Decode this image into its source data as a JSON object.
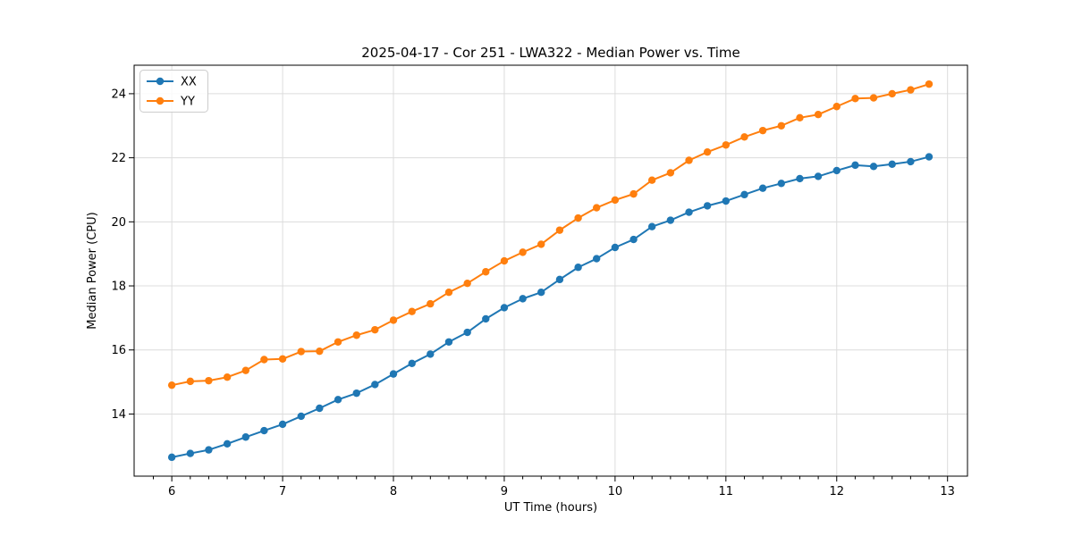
{
  "chart_data": {
    "type": "line",
    "title": "2025-04-17 - Cor 251 - LWA322 - Median Power vs. Time",
    "xlabel": "UT Time (hours)",
    "ylabel": "Median Power (CPU)",
    "xlim": [
      5.66,
      13.18
    ],
    "ylim": [
      12.06,
      24.89
    ],
    "x_major_ticks": [
      6,
      7,
      8,
      9,
      10,
      11,
      12,
      13
    ],
    "x_minor_interval": 0.1667,
    "y_major_ticks": [
      14,
      16,
      18,
      20,
      22,
      24
    ],
    "grid": "major-only",
    "grid_color": "#dcdcdc",
    "spine_color": "#000000",
    "background_color": "#ffffff",
    "legend_position": "upper-left",
    "x": [
      6.0,
      6.167,
      6.333,
      6.5,
      6.667,
      6.833,
      7.0,
      7.167,
      7.333,
      7.5,
      7.667,
      7.833,
      8.0,
      8.167,
      8.333,
      8.5,
      8.667,
      8.833,
      9.0,
      9.167,
      9.333,
      9.5,
      9.667,
      9.833,
      10.0,
      10.167,
      10.333,
      10.5,
      10.667,
      10.833,
      11.0,
      11.167,
      11.333,
      11.5,
      11.667,
      11.833,
      12.0,
      12.167,
      12.333,
      12.5,
      12.667,
      12.833
    ],
    "series": [
      {
        "name": "XX",
        "color": "#1f77b4",
        "values": [
          12.65,
          12.77,
          12.88,
          13.07,
          13.28,
          13.48,
          13.68,
          13.93,
          14.18,
          14.45,
          14.65,
          14.92,
          15.25,
          15.58,
          15.87,
          16.25,
          16.55,
          16.97,
          17.32,
          17.6,
          17.8,
          18.2,
          18.58,
          18.85,
          19.2,
          19.45,
          19.85,
          20.05,
          20.3,
          20.5,
          20.65,
          20.85,
          21.05,
          21.2,
          21.35,
          21.42,
          21.6,
          21.77,
          21.73,
          21.8,
          21.88,
          22.03
        ]
      },
      {
        "name": "YY",
        "color": "#ff7f0e",
        "values": [
          14.9,
          15.02,
          15.04,
          15.15,
          15.36,
          15.7,
          15.72,
          15.95,
          15.96,
          16.25,
          16.46,
          16.63,
          16.93,
          17.2,
          17.44,
          17.8,
          18.08,
          18.44,
          18.78,
          19.05,
          19.3,
          19.74,
          20.12,
          20.44,
          20.68,
          20.87,
          21.3,
          21.53,
          21.92,
          22.18,
          22.4,
          22.65,
          22.85,
          23.0,
          23.25,
          23.35,
          23.6,
          23.85,
          23.87,
          24.0,
          24.12,
          24.3
        ]
      }
    ]
  }
}
